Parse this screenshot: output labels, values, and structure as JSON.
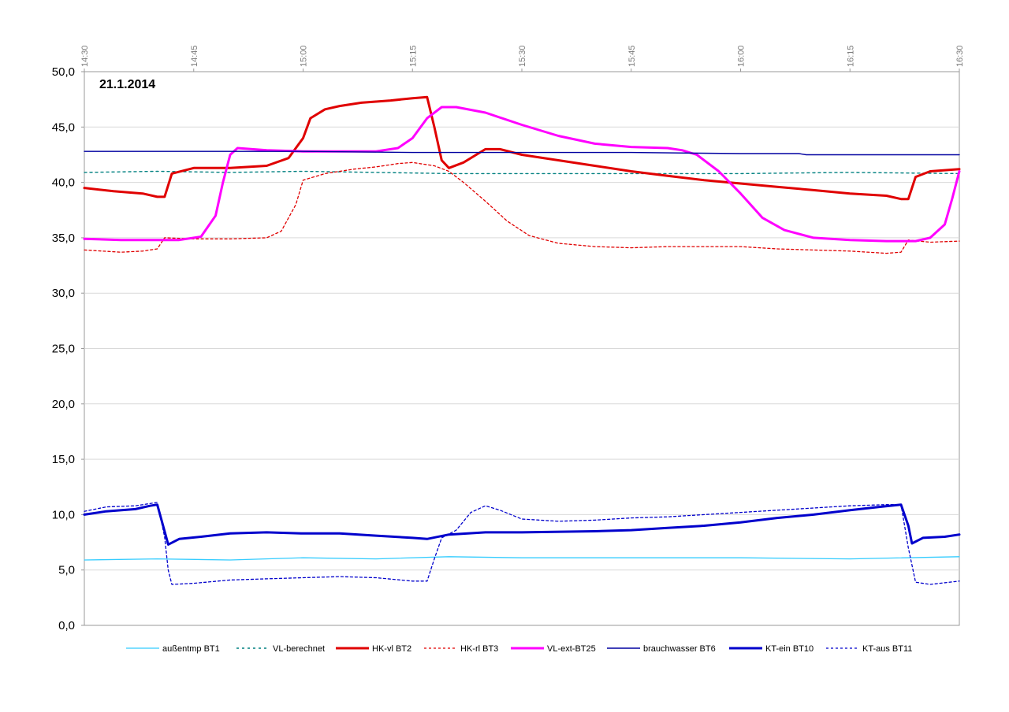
{
  "chart_data": {
    "type": "line",
    "title": "21.1.2014",
    "xlabel": "",
    "ylabel": "",
    "ylim": [
      0,
      50
    ],
    "y_ticks": [
      "0,0",
      "5,0",
      "10,0",
      "15,0",
      "20,0",
      "25,0",
      "30,0",
      "35,0",
      "40,0",
      "45,0",
      "50,0"
    ],
    "x_ticks": [
      "14:30",
      "14:45",
      "15:00",
      "15:15",
      "15:30",
      "15:45",
      "16:00",
      "16:15",
      "16:30"
    ],
    "xlim": [
      "14:30",
      "16:30"
    ],
    "grid": "horizontal",
    "legend_position": "bottom",
    "series": [
      {
        "name": "außentmp BT1",
        "color": "#33ccff",
        "width": 1.3,
        "dash": "none",
        "points": [
          [
            "14:30",
            5.9
          ],
          [
            "14:40",
            6.0
          ],
          [
            "14:50",
            5.9
          ],
          [
            "15:00",
            6.1
          ],
          [
            "15:10",
            6.0
          ],
          [
            "15:20",
            6.2
          ],
          [
            "15:30",
            6.1
          ],
          [
            "15:45",
            6.1
          ],
          [
            "16:00",
            6.1
          ],
          [
            "16:15",
            6.0
          ],
          [
            "16:30",
            6.2
          ]
        ]
      },
      {
        "name": "VL-berechnet",
        "color": "#008080",
        "width": 1.4,
        "dash": "3,4",
        "points": [
          [
            "14:30",
            40.9
          ],
          [
            "14:40",
            41.0
          ],
          [
            "14:50",
            40.9
          ],
          [
            "15:00",
            41.0
          ],
          [
            "15:10",
            40.9
          ],
          [
            "15:20",
            40.8
          ],
          [
            "15:30",
            40.8
          ],
          [
            "15:45",
            40.8
          ],
          [
            "16:00",
            40.8
          ],
          [
            "16:15",
            40.9
          ],
          [
            "16:30",
            40.8
          ]
        ]
      },
      {
        "name": "HK-vl BT2",
        "color": "#e00000",
        "width": 3,
        "dash": "none",
        "points": [
          [
            "14:30",
            39.5
          ],
          [
            "14:34",
            39.2
          ],
          [
            "14:38",
            39.0
          ],
          [
            "14:40",
            38.7
          ],
          [
            "14:41",
            38.7
          ],
          [
            "14:42",
            40.8
          ],
          [
            "14:45",
            41.3
          ],
          [
            "14:50",
            41.3
          ],
          [
            "14:55",
            41.5
          ],
          [
            "14:58",
            42.2
          ],
          [
            "15:00",
            44.0
          ],
          [
            "15:01",
            45.8
          ],
          [
            "15:03",
            46.6
          ],
          [
            "15:05",
            46.9
          ],
          [
            "15:08",
            47.2
          ],
          [
            "15:12",
            47.4
          ],
          [
            "15:15",
            47.6
          ],
          [
            "15:17",
            47.7
          ],
          [
            "15:18",
            45.0
          ],
          [
            "15:19",
            42.0
          ],
          [
            "15:20",
            41.3
          ],
          [
            "15:22",
            41.8
          ],
          [
            "15:25",
            43.0
          ],
          [
            "15:27",
            43.0
          ],
          [
            "15:30",
            42.5
          ],
          [
            "15:35",
            42.0
          ],
          [
            "15:40",
            41.5
          ],
          [
            "15:45",
            41.0
          ],
          [
            "15:50",
            40.6
          ],
          [
            "15:55",
            40.2
          ],
          [
            "16:00",
            39.9
          ],
          [
            "16:05",
            39.6
          ],
          [
            "16:10",
            39.3
          ],
          [
            "16:15",
            39.0
          ],
          [
            "16:20",
            38.8
          ],
          [
            "16:22",
            38.5
          ],
          [
            "16:23",
            38.5
          ],
          [
            "16:24",
            40.5
          ],
          [
            "16:26",
            41.0
          ],
          [
            "16:30",
            41.2
          ]
        ]
      },
      {
        "name": "HK-rl BT3",
        "color": "#e00000",
        "width": 1.3,
        "dash": "3,3",
        "points": [
          [
            "14:30",
            33.9
          ],
          [
            "14:35",
            33.7
          ],
          [
            "14:38",
            33.8
          ],
          [
            "14:40",
            34.0
          ],
          [
            "14:41",
            35.0
          ],
          [
            "14:45",
            34.9
          ],
          [
            "14:50",
            34.9
          ],
          [
            "14:55",
            35.0
          ],
          [
            "14:57",
            35.6
          ],
          [
            "14:59",
            38.0
          ],
          [
            "15:00",
            40.2
          ],
          [
            "15:03",
            40.8
          ],
          [
            "15:07",
            41.2
          ],
          [
            "15:10",
            41.4
          ],
          [
            "15:13",
            41.7
          ],
          [
            "15:15",
            41.8
          ],
          [
            "15:18",
            41.5
          ],
          [
            "15:20",
            41.0
          ],
          [
            "15:22",
            40.0
          ],
          [
            "15:25",
            38.3
          ],
          [
            "15:28",
            36.5
          ],
          [
            "15:31",
            35.2
          ],
          [
            "15:35",
            34.5
          ],
          [
            "15:40",
            34.2
          ],
          [
            "15:45",
            34.1
          ],
          [
            "15:50",
            34.2
          ],
          [
            "15:55",
            34.2
          ],
          [
            "16:00",
            34.2
          ],
          [
            "16:05",
            34.0
          ],
          [
            "16:10",
            33.9
          ],
          [
            "16:15",
            33.8
          ],
          [
            "16:20",
            33.6
          ],
          [
            "16:22",
            33.7
          ],
          [
            "16:23",
            34.8
          ],
          [
            "16:26",
            34.6
          ],
          [
            "16:30",
            34.7
          ]
        ]
      },
      {
        "name": "VL-ext-BT25",
        "color": "#ff00ff",
        "width": 3,
        "dash": "none",
        "points": [
          [
            "14:30",
            34.9
          ],
          [
            "14:35",
            34.8
          ],
          [
            "14:40",
            34.8
          ],
          [
            "14:43",
            34.8
          ],
          [
            "14:46",
            35.1
          ],
          [
            "14:48",
            37.0
          ],
          [
            "14:49",
            40.0
          ],
          [
            "14:50",
            42.5
          ],
          [
            "14:51",
            43.1
          ],
          [
            "14:55",
            42.9
          ],
          [
            "15:00",
            42.8
          ],
          [
            "15:05",
            42.8
          ],
          [
            "15:10",
            42.8
          ],
          [
            "15:13",
            43.1
          ],
          [
            "15:15",
            44.0
          ],
          [
            "15:17",
            45.8
          ],
          [
            "15:19",
            46.8
          ],
          [
            "15:21",
            46.8
          ],
          [
            "15:25",
            46.3
          ],
          [
            "15:30",
            45.2
          ],
          [
            "15:35",
            44.2
          ],
          [
            "15:40",
            43.5
          ],
          [
            "15:45",
            43.2
          ],
          [
            "15:50",
            43.1
          ],
          [
            "15:52",
            42.9
          ],
          [
            "15:54",
            42.5
          ],
          [
            "15:57",
            41.0
          ],
          [
            "16:00",
            39.0
          ],
          [
            "16:03",
            36.8
          ],
          [
            "16:06",
            35.7
          ],
          [
            "16:10",
            35.0
          ],
          [
            "16:15",
            34.8
          ],
          [
            "16:20",
            34.7
          ],
          [
            "16:24",
            34.7
          ],
          [
            "16:26",
            35.0
          ],
          [
            "16:28",
            36.2
          ],
          [
            "16:29",
            38.5
          ],
          [
            "16:30",
            41.0
          ]
        ]
      },
      {
        "name": "brauchwasser BT6",
        "color": "#0000a0",
        "width": 1.4,
        "dash": "none",
        "points": [
          [
            "14:30",
            42.8
          ],
          [
            "14:45",
            42.8
          ],
          [
            "15:00",
            42.8
          ],
          [
            "15:15",
            42.7
          ],
          [
            "15:30",
            42.7
          ],
          [
            "15:45",
            42.7
          ],
          [
            "16:00",
            42.6
          ],
          [
            "16:08",
            42.6
          ],
          [
            "16:09",
            42.5
          ],
          [
            "16:15",
            42.5
          ],
          [
            "16:30",
            42.5
          ]
        ]
      },
      {
        "name": "KT-ein BT10",
        "color": "#0000cc",
        "width": 3,
        "dash": "none",
        "points": [
          [
            "14:30",
            10.0
          ],
          [
            "14:33",
            10.3
          ],
          [
            "14:37",
            10.5
          ],
          [
            "14:39",
            10.8
          ],
          [
            "14:40",
            10.9
          ],
          [
            "14:41",
            8.5
          ],
          [
            "14:41.5",
            7.3
          ],
          [
            "14:43",
            7.8
          ],
          [
            "14:46",
            8.0
          ],
          [
            "14:50",
            8.3
          ],
          [
            "14:55",
            8.4
          ],
          [
            "15:00",
            8.3
          ],
          [
            "15:05",
            8.3
          ],
          [
            "15:10",
            8.1
          ],
          [
            "15:15",
            7.9
          ],
          [
            "15:17",
            7.8
          ],
          [
            "15:20",
            8.2
          ],
          [
            "15:25",
            8.4
          ],
          [
            "15:30",
            8.4
          ],
          [
            "15:40",
            8.5
          ],
          [
            "15:45",
            8.6
          ],
          [
            "15:50",
            8.8
          ],
          [
            "15:55",
            9.0
          ],
          [
            "16:00",
            9.3
          ],
          [
            "16:05",
            9.7
          ],
          [
            "16:10",
            10.0
          ],
          [
            "16:15",
            10.4
          ],
          [
            "16:19",
            10.7
          ],
          [
            "16:22",
            10.9
          ],
          [
            "16:23",
            9.0
          ],
          [
            "16:23.5",
            7.4
          ],
          [
            "16:25",
            7.9
          ],
          [
            "16:28",
            8.0
          ],
          [
            "16:30",
            8.2
          ]
        ]
      },
      {
        "name": "KT-aus BT11",
        "color": "#0000cc",
        "width": 1.3,
        "dash": "3,3",
        "points": [
          [
            "14:30",
            10.3
          ],
          [
            "14:33",
            10.7
          ],
          [
            "14:37",
            10.8
          ],
          [
            "14:40",
            11.1
          ],
          [
            "14:41",
            8.0
          ],
          [
            "14:41.5",
            5.0
          ],
          [
            "14:42",
            3.7
          ],
          [
            "14:45",
            3.8
          ],
          [
            "14:50",
            4.1
          ],
          [
            "14:55",
            4.2
          ],
          [
            "15:00",
            4.3
          ],
          [
            "15:05",
            4.4
          ],
          [
            "15:10",
            4.3
          ],
          [
            "15:15",
            4.0
          ],
          [
            "15:17",
            4.0
          ],
          [
            "15:18",
            6.0
          ],
          [
            "15:19",
            7.9
          ],
          [
            "15:21",
            8.6
          ],
          [
            "15:23",
            10.2
          ],
          [
            "15:25",
            10.8
          ],
          [
            "15:27",
            10.4
          ],
          [
            "15:30",
            9.6
          ],
          [
            "15:35",
            9.4
          ],
          [
            "15:40",
            9.5
          ],
          [
            "15:45",
            9.7
          ],
          [
            "15:50",
            9.8
          ],
          [
            "15:55",
            10.0
          ],
          [
            "16:00",
            10.2
          ],
          [
            "16:05",
            10.4
          ],
          [
            "16:10",
            10.6
          ],
          [
            "16:15",
            10.8
          ],
          [
            "16:20",
            10.9
          ],
          [
            "16:22",
            10.9
          ],
          [
            "16:23",
            7.0
          ],
          [
            "16:24",
            3.9
          ],
          [
            "16:26",
            3.7
          ],
          [
            "16:30",
            4.0
          ]
        ]
      }
    ]
  }
}
